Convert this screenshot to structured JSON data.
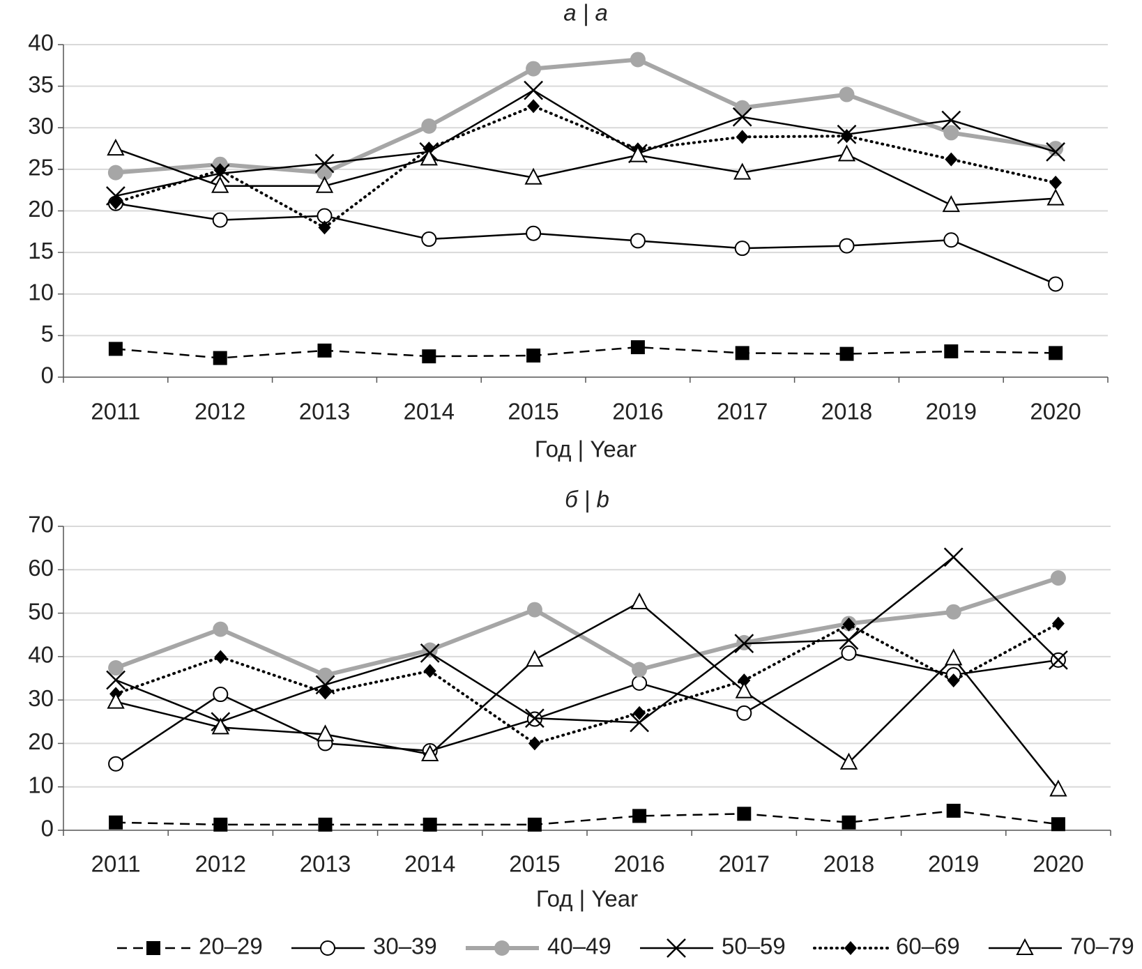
{
  "chart_data": [
    {
      "type": "line",
      "title": "а | a",
      "xlabel": "Год | Year",
      "categories": [
        "2011",
        "2012",
        "2013",
        "2014",
        "2015",
        "2016",
        "2017",
        "2018",
        "2019",
        "2020"
      ],
      "ylim": [
        0,
        40
      ],
      "yticks": [
        0,
        5,
        10,
        15,
        20,
        25,
        30,
        35,
        40
      ],
      "grid": true,
      "series": [
        {
          "name": "20–29",
          "color": "#000000",
          "line_style": "dashed",
          "marker": "square",
          "values": [
            3.4,
            2.3,
            3.2,
            2.5,
            2.6,
            3.6,
            2.9,
            2.8,
            3.1,
            2.9
          ]
        },
        {
          "name": "30–39",
          "color": "#000000",
          "line_style": "solid",
          "marker": "circle",
          "values": [
            20.9,
            18.9,
            19.4,
            16.6,
            17.3,
            16.4,
            15.5,
            15.8,
            16.5,
            11.2
          ]
        },
        {
          "name": "40–49",
          "color": "#a6a6a6",
          "line_style": "thick",
          "marker": "dot",
          "values": [
            24.6,
            25.6,
            24.6,
            30.2,
            37.1,
            38.2,
            32.4,
            34.0,
            29.4,
            27.5
          ]
        },
        {
          "name": "50–59",
          "color": "#000000",
          "line_style": "solid",
          "marker": "x",
          "values": [
            21.8,
            24.5,
            25.7,
            27.1,
            34.5,
            26.9,
            31.3,
            29.2,
            30.9,
            27.1
          ]
        },
        {
          "name": "60–69",
          "color": "#000000",
          "line_style": "dotted",
          "marker": "diamond",
          "values": [
            21.0,
            24.9,
            18.0,
            27.5,
            32.6,
            27.4,
            28.9,
            29.0,
            26.2,
            23.4
          ]
        },
        {
          "name": "70–79",
          "color": "#000000",
          "line_style": "solid",
          "marker": "triangle",
          "values": [
            27.5,
            23.0,
            23.0,
            26.3,
            24.0,
            26.7,
            24.6,
            26.8,
            20.7,
            21.5
          ]
        }
      ]
    },
    {
      "type": "line",
      "title": "б | b",
      "xlabel": "Год | Year",
      "categories": [
        "2011",
        "2012",
        "2013",
        "2014",
        "2015",
        "2016",
        "2017",
        "2018",
        "2019",
        "2020"
      ],
      "ylim": [
        0,
        70
      ],
      "yticks": [
        0,
        10,
        20,
        30,
        40,
        50,
        60,
        70
      ],
      "grid": true,
      "series": [
        {
          "color": "#000000",
          "line_style": "dashed",
          "marker": "square",
          "values": [
            1.8,
            1.3,
            1.3,
            1.3,
            1.3,
            3.3,
            3.8,
            1.8,
            4.5,
            1.4
          ]
        },
        {
          "color": "#000000",
          "line_style": "solid",
          "marker": "circle",
          "values": [
            15.3,
            31.3,
            20.0,
            18.3,
            25.6,
            33.9,
            27.0,
            40.8,
            35.8,
            39.2
          ]
        },
        {
          "color": "#a6a6a6",
          "line_style": "thick",
          "marker": "dot",
          "values": [
            37.4,
            46.3,
            35.7,
            41.5,
            50.8,
            37.0,
            43.2,
            47.6,
            50.3,
            58.1
          ]
        },
        {
          "color": "#000000",
          "line_style": "solid",
          "marker": "x",
          "values": [
            34.6,
            25.0,
            33.5,
            40.8,
            25.8,
            24.8,
            43.0,
            43.8,
            62.9,
            39.2
          ]
        },
        {
          "color": "#000000",
          "line_style": "dotted",
          "marker": "diamond",
          "values": [
            31.4,
            39.9,
            31.7,
            36.7,
            20.0,
            27.0,
            34.5,
            47.4,
            34.5,
            47.6
          ]
        },
        {
          "color": "#000000",
          "line_style": "solid",
          "marker": "triangle",
          "values": [
            29.6,
            23.7,
            22.1,
            17.5,
            39.3,
            52.5,
            32.0,
            15.6,
            39.6,
            9.4
          ]
        }
      ]
    }
  ]
}
